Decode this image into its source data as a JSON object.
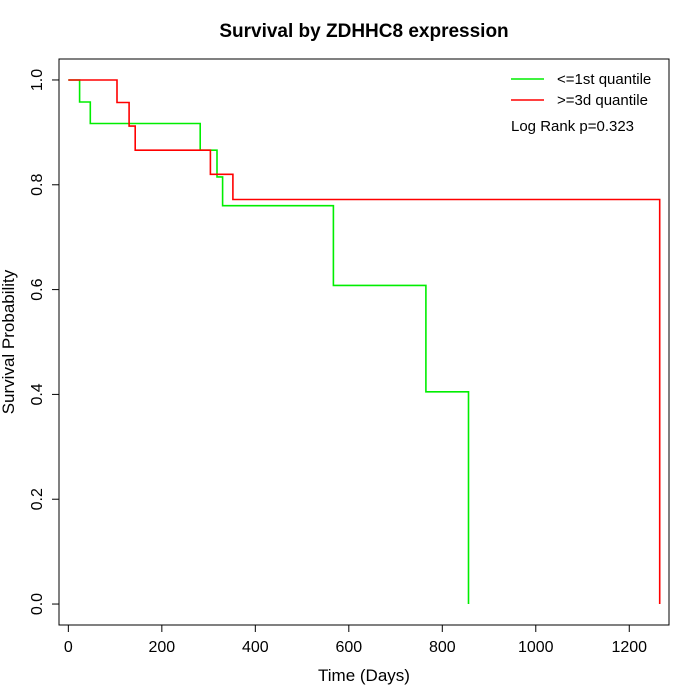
{
  "chart_data": {
    "type": "line",
    "step": true,
    "title": "Survival by ZDHHC8 expression",
    "xlabel": "Time (Days)",
    "ylabel": "Survival Probability",
    "xlim": [
      -20,
      1285
    ],
    "ylim": [
      -0.04,
      1.04
    ],
    "xticks": [
      0,
      200,
      400,
      600,
      800,
      1000,
      1200
    ],
    "yticks": [
      0.0,
      0.2,
      0.4,
      0.6,
      0.8,
      1.0
    ],
    "xtick_labels": [
      "0",
      "200",
      "400",
      "600",
      "800",
      "1000",
      "1200"
    ],
    "ytick_labels": [
      "0.0",
      "0.2",
      "0.4",
      "0.6",
      "0.8",
      "1.0"
    ],
    "grid": false,
    "legend_position": "top-right",
    "annotation": "Log Rank p=0.323",
    "series": [
      {
        "name": "<=1st quantile",
        "color": "#00ee00",
        "points": [
          [
            0,
            1.0
          ],
          [
            24,
            1.0
          ],
          [
            24,
            0.958
          ],
          [
            47,
            0.958
          ],
          [
            47,
            0.917
          ],
          [
            282,
            0.917
          ],
          [
            282,
            0.866
          ],
          [
            318,
            0.866
          ],
          [
            318,
            0.815
          ],
          [
            330,
            0.815
          ],
          [
            330,
            0.76
          ],
          [
            567,
            0.76
          ],
          [
            567,
            0.608
          ],
          [
            765,
            0.608
          ],
          [
            765,
            0.405
          ],
          [
            856,
            0.405
          ],
          [
            856,
            0.0
          ]
        ]
      },
      {
        "name": ">=3d quantile",
        "color": "#ff0000",
        "points": [
          [
            0,
            1.0
          ],
          [
            104,
            1.0
          ],
          [
            104,
            0.957
          ],
          [
            130,
            0.957
          ],
          [
            130,
            0.912
          ],
          [
            143,
            0.912
          ],
          [
            143,
            0.866
          ],
          [
            304,
            0.866
          ],
          [
            304,
            0.82
          ],
          [
            352,
            0.82
          ],
          [
            352,
            0.772
          ],
          [
            1265,
            0.772
          ],
          [
            1265,
            0.0
          ]
        ]
      }
    ]
  }
}
